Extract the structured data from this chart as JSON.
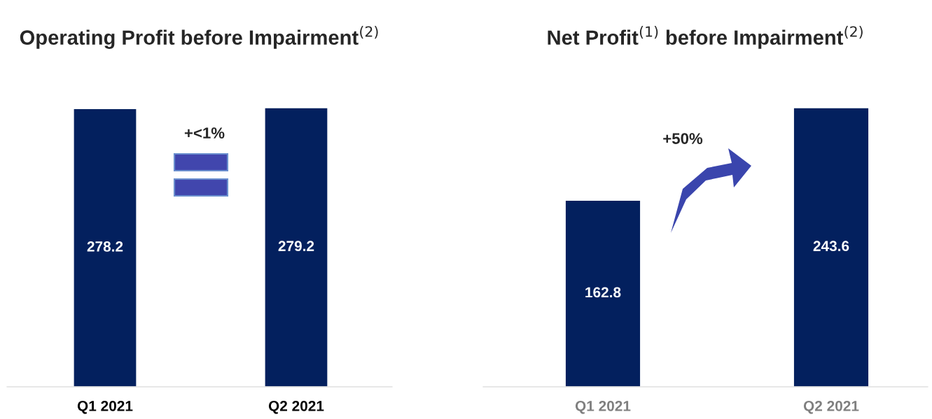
{
  "chart_data": [
    {
      "type": "bar",
      "title": "Operating Profit before Impairment$^{(2)}$",
      "categories": [
        "Q1 2021",
        "Q2 2021"
      ],
      "values": [
        278.2,
        279.2
      ],
      "color": "#03205e",
      "data_labels": true,
      "annotations": [
        "+<1%"
      ]
    },
    {
      "type": "bar",
      "title": "Net Profit$^{(1)}$ before Impairment$^{(2)}$",
      "categories": [
        "Q1 2021",
        "Q2 2021"
      ],
      "values": [
        162.8,
        243.6
      ],
      "color": "#03205e",
      "data_labels": true,
      "annotations": [
        "+50%"
      ]
    }
  ]
}
